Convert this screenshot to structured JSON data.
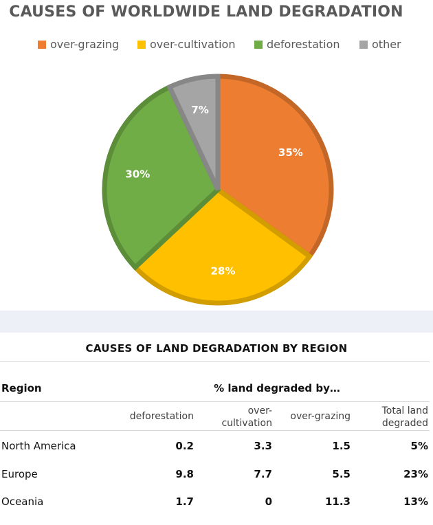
{
  "chart_data": [
    {
      "type": "pie",
      "title": "CAUSES OF WORLDWIDE LAND DEGRADATION",
      "legend_position": "top",
      "slices": [
        {
          "name": "over-grazing",
          "value": 35,
          "label": "35%",
          "color": "#ED7D31"
        },
        {
          "name": "over-cultivation",
          "value": 28,
          "label": "28%",
          "color": "#FFC000"
        },
        {
          "name": "deforestation",
          "value": 30,
          "label": "30%",
          "color": "#70AD47"
        },
        {
          "name": "other",
          "value": 7,
          "label": "7%",
          "color": "#A5A5A5"
        }
      ]
    },
    {
      "type": "table",
      "title": "CAUSES OF LAND DEGRADATION BY REGION",
      "row_header": "Region",
      "group_header": "% land degraded by…",
      "columns": [
        "deforestation",
        "over-cultivation",
        "over-grazing",
        "Total land degraded"
      ],
      "rows": [
        {
          "region": "North America",
          "values": [
            "0.2",
            "3.3",
            "1.5",
            "5%"
          ]
        },
        {
          "region": "Europe",
          "values": [
            "9.8",
            "7.7",
            "5.5",
            "23%"
          ]
        },
        {
          "region": "Oceania",
          "values": [
            "1.7",
            "0",
            "11.3",
            "13%"
          ]
        }
      ]
    }
  ],
  "table_header_lines": {
    "c1": [
      "deforestation"
    ],
    "c2": [
      "over-",
      "cultivation"
    ],
    "c3": [
      "over-grazing"
    ],
    "c4": [
      "Total land",
      "degraded"
    ]
  }
}
